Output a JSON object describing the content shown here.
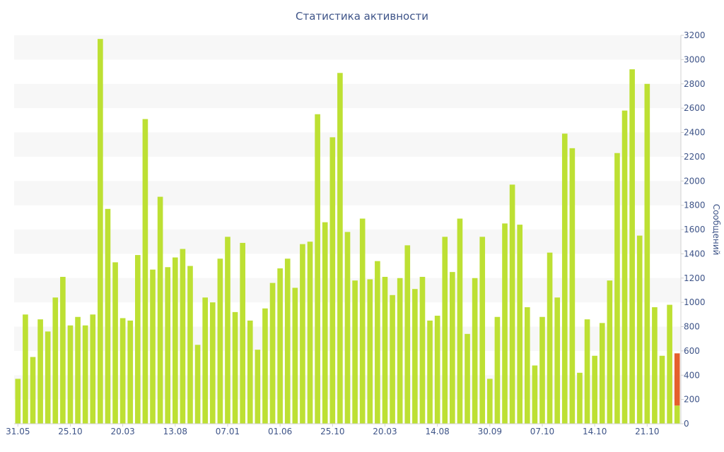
{
  "chart_data": {
    "type": "bar",
    "title": "Статистика активности",
    "xlabel": "",
    "ylabel": "Сообщений",
    "ylim": [
      0,
      3200
    ],
    "yticks": [
      0,
      200,
      400,
      600,
      800,
      1000,
      1200,
      1400,
      1600,
      1800,
      2000,
      2200,
      2400,
      2600,
      2800,
      3000,
      3200
    ],
    "y_axis_side": "right",
    "grid": "alternating horizontal bands",
    "legend": "none",
    "xtick_labels": [
      {
        "index": 0,
        "label": "31.05"
      },
      {
        "index": 7,
        "label": "25.10"
      },
      {
        "index": 14,
        "label": "20.03"
      },
      {
        "index": 21,
        "label": "13.08"
      },
      {
        "index": 28,
        "label": "07.01"
      },
      {
        "index": 35,
        "label": "01.06"
      },
      {
        "index": 42,
        "label": "25.10"
      },
      {
        "index": 49,
        "label": "20.03"
      },
      {
        "index": 56,
        "label": "14.08"
      },
      {
        "index": 63,
        "label": "30.09"
      },
      {
        "index": 70,
        "label": "07.10"
      },
      {
        "index": 77,
        "label": "14.10"
      },
      {
        "index": 84,
        "label": "21.10"
      }
    ],
    "series": [
      {
        "color": "#bde033",
        "values": [
          370,
          900,
          550,
          860,
          760,
          1040,
          1210,
          810,
          880,
          810,
          900,
          3170,
          1770,
          1330,
          870,
          850,
          1390,
          2510,
          1270,
          1870,
          1290,
          1370,
          1440,
          1300,
          650,
          1040,
          1000,
          1360,
          1540,
          920,
          1490,
          850,
          610,
          950,
          1160,
          1280,
          1360,
          1120,
          1480,
          1500,
          2550,
          1660,
          2360,
          2890,
          1580,
          1180,
          1690,
          1190,
          1340,
          1210,
          1060,
          1200,
          1470,
          1110,
          1210,
          850,
          890,
          1540,
          1250,
          1690,
          740,
          1200,
          1540,
          370,
          880,
          1650,
          1970,
          1640,
          960,
          480,
          880,
          1410,
          1040,
          2390,
          2270,
          420,
          860,
          560,
          830,
          1180,
          2230,
          2580,
          2920,
          1550,
          2800,
          960,
          560,
          980,
          150
        ]
      },
      {
        "color": "#e5602d",
        "values": [
          0,
          0,
          0,
          0,
          0,
          0,
          0,
          0,
          0,
          0,
          0,
          0,
          0,
          0,
          0,
          0,
          0,
          0,
          0,
          0,
          0,
          0,
          0,
          0,
          0,
          0,
          0,
          0,
          0,
          0,
          0,
          0,
          0,
          0,
          0,
          0,
          0,
          0,
          0,
          0,
          0,
          0,
          0,
          0,
          0,
          0,
          0,
          0,
          0,
          0,
          0,
          0,
          0,
          0,
          0,
          0,
          0,
          0,
          0,
          0,
          0,
          0,
          0,
          0,
          0,
          0,
          0,
          0,
          0,
          0,
          0,
          0,
          0,
          0,
          0,
          0,
          0,
          0,
          0,
          0,
          0,
          0,
          0,
          0,
          0,
          0,
          0,
          0,
          430
        ]
      }
    ]
  },
  "colors": {
    "title": "#3e5488",
    "axis_text": "#3e5488",
    "band": "#f7f7f7",
    "axis_line": "#d0d0d0"
  }
}
